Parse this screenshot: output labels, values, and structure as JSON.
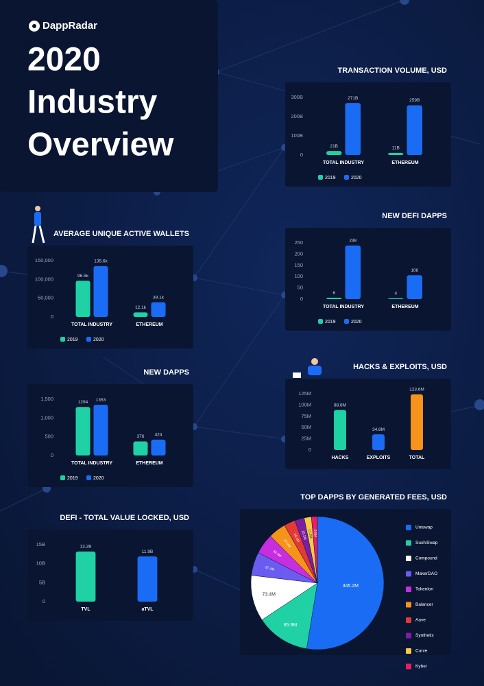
{
  "header": {
    "brand": "DappRadar",
    "title": [
      "2020",
      "Industry",
      "Overview"
    ]
  },
  "chart_data": [
    {
      "type": "bar",
      "title": "TRANSACTION VOLUME, USD",
      "categories": [
        "TOTAL INDUSTRY",
        "ETHEREUM"
      ],
      "series": [
        {
          "name": "2019",
          "color": "#1fd1a5",
          "values": [
            21,
            11
          ],
          "value_labels": [
            "21B",
            "11B"
          ]
        },
        {
          "name": "2020",
          "color": "#1a6cf5",
          "values": [
            271,
            259
          ],
          "value_labels": [
            "271B",
            "259B"
          ]
        }
      ],
      "ylim": [
        0,
        300
      ],
      "yticks": [
        0,
        {
          "value": 100,
          "label": "100B"
        },
        {
          "value": 200,
          "label": "200B"
        },
        {
          "value": 300,
          "label": "300B"
        }
      ]
    },
    {
      "type": "bar",
      "title": "AVERAGE UNIQUE ACTIVE WALLETS",
      "categories": [
        "TOTAL INDUSTRY",
        "ETHEREUM"
      ],
      "series": [
        {
          "name": "2019",
          "color": "#1fd1a5",
          "values": [
            96500,
            12100
          ],
          "value_labels": [
            "96.5k",
            "12.1k"
          ]
        },
        {
          "name": "2020",
          "color": "#1a6cf5",
          "values": [
            135600,
            39100
          ],
          "value_labels": [
            "135.6k",
            "39.1k"
          ]
        }
      ],
      "ylim": [
        0,
        150000
      ],
      "yticks": [
        0,
        {
          "value": 50000,
          "label": "50,000"
        },
        {
          "value": 100000,
          "label": "100,000"
        },
        {
          "value": 150000,
          "label": "150,000"
        }
      ]
    },
    {
      "type": "bar",
      "title": "NEW DEFI DAPPS",
      "categories": [
        "TOTAL INDUSTRY",
        "ETHEREUM"
      ],
      "series": [
        {
          "name": "2019",
          "color": "#1fd1a5",
          "values": [
            6,
            4
          ]
        },
        {
          "name": "2020",
          "color": "#1a6cf5",
          "values": [
            238,
            106
          ]
        }
      ],
      "ylim": [
        0,
        250
      ],
      "yticks": [
        0,
        50,
        100,
        150,
        200,
        250
      ]
    },
    {
      "type": "bar",
      "title": "NEW DAPPS",
      "categories": [
        "TOTAL INDUSTRY",
        "ETHEREUM"
      ],
      "series": [
        {
          "name": "2019",
          "color": "#1fd1a5",
          "values": [
            1294,
            376
          ]
        },
        {
          "name": "2020",
          "color": "#1a6cf5",
          "values": [
            1353,
            424
          ]
        }
      ],
      "ylim": [
        0,
        1500
      ],
      "yticks": [
        0,
        500,
        {
          "value": 1000,
          "label": "1,000"
        },
        {
          "value": 1500,
          "label": "1,500"
        }
      ]
    },
    {
      "type": "bar",
      "title": "HACKS & EXPLOITS, USD",
      "categories": [
        "HACKS",
        "EXPLOITS",
        "TOTAL"
      ],
      "values": [
        88.8,
        34.8,
        123.6
      ],
      "value_labels": [
        "88.8M",
        "34.8M",
        "123.6M"
      ],
      "colors": [
        "#1fd1a5",
        "#1a6cf5",
        "#f7931a"
      ],
      "ylim": [
        0,
        125
      ],
      "yticks": [
        0,
        {
          "value": 25,
          "label": "25M"
        },
        {
          "value": 50,
          "label": "50M"
        },
        {
          "value": 75,
          "label": "75M"
        },
        {
          "value": 100,
          "label": "100M"
        },
        {
          "value": 125,
          "label": "125M"
        }
      ]
    },
    {
      "type": "bar",
      "title": "DEFI - TOTAL VALUE LOCKED, USD",
      "categories": [
        "TVL",
        "aTVL"
      ],
      "values": [
        13.2,
        11.9
      ],
      "value_labels": [
        "13.2B",
        "11.9B"
      ],
      "colors": [
        "#1fd1a5",
        "#1a6cf5"
      ],
      "ylim": [
        0,
        15
      ],
      "yticks": [
        0,
        {
          "value": 5,
          "label": "5B"
        },
        {
          "value": 10,
          "label": "10B"
        },
        {
          "value": 15,
          "label": "15B"
        }
      ]
    },
    {
      "type": "pie",
      "title": "TOP DAPPS BY GENERATED FEES, USD",
      "categories": [
        "Uniswap",
        "SushiSwap",
        "Compound",
        "MakerDAO",
        "Tokenlon",
        "Balancer",
        "Aave",
        "Synthetix",
        "Curve",
        "Kyber"
      ],
      "values": [
        345.2,
        85.9,
        73.4,
        37.4,
        32.3,
        27.9,
        18.1,
        15.1,
        11.5,
        9.5
      ],
      "value_labels": [
        "345.2M",
        "85.9M",
        "73.4M",
        "37.4M",
        "32.3M",
        "27.9M",
        "18.1M",
        "15.1M",
        "11.5M",
        "9.5M"
      ],
      "colors": [
        "#1a6cf5",
        "#1fd1a5",
        "#ffffff",
        "#6a5cf0",
        "#c72ee0",
        "#f7931a",
        "#e53935",
        "#7b1fa2",
        "#f7c948",
        "#e91e63"
      ]
    }
  ]
}
